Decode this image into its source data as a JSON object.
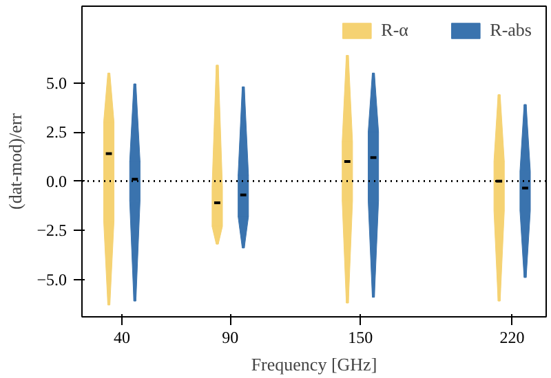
{
  "chart_data": {
    "type": "box",
    "xlabel": "Frequency [GHz]",
    "ylabel": "(dat-mod)/err",
    "x": [
      40,
      90,
      150,
      220
    ],
    "xlim": [
      21.6,
      235.7
    ],
    "xticks": [
      40,
      90,
      150,
      220
    ],
    "ylim": [
      -6.9,
      8.9
    ],
    "yticks": [
      {
        "value": -5,
        "label": "−5.0"
      },
      {
        "value": -2.5,
        "label": "−2.5"
      },
      {
        "value": 0,
        "label": "0.0"
      },
      {
        "value": 2.5,
        "label": "2.5"
      },
      {
        "value": 5,
        "label": "5.0"
      }
    ],
    "series": [
      {
        "name": "R-α",
        "color": "#f5d272",
        "boxes": [
          {
            "low": -6.3,
            "q1": -2,
            "median": 1.4,
            "q3": 3,
            "high": 5.5
          },
          {
            "low": -3.2,
            "q1": -2.3,
            "median": -1.1,
            "q3": -0.3,
            "high": 5.9
          },
          {
            "low": -6.2,
            "q1": -1,
            "median": 1.0,
            "q3": 2,
            "high": 6.4
          },
          {
            "low": -6.1,
            "q1": -1.5,
            "median": 0.0,
            "q3": 1,
            "high": 4.4
          }
        ]
      },
      {
        "name": "R-abs",
        "color": "#3a73ae",
        "boxes": [
          {
            "low": -6.1,
            "q1": -1,
            "median": 0.1,
            "q3": 1,
            "high": 4.95
          },
          {
            "low": -3.4,
            "q1": -1.8,
            "median": -0.7,
            "q3": 0.3,
            "high": 4.8
          },
          {
            "low": -5.9,
            "q1": -1,
            "median": 1.2,
            "q3": 2.5,
            "high": 5.5
          },
          {
            "low": -4.9,
            "q1": -1.5,
            "median": -0.35,
            "q3": 0.5,
            "high": 3.9
          }
        ]
      }
    ],
    "ref_lines": [
      {
        "axis": "y",
        "value": 0,
        "line_style": "dotted",
        "color": "#000000"
      }
    ],
    "legend": "top right",
    "grid": false
  }
}
